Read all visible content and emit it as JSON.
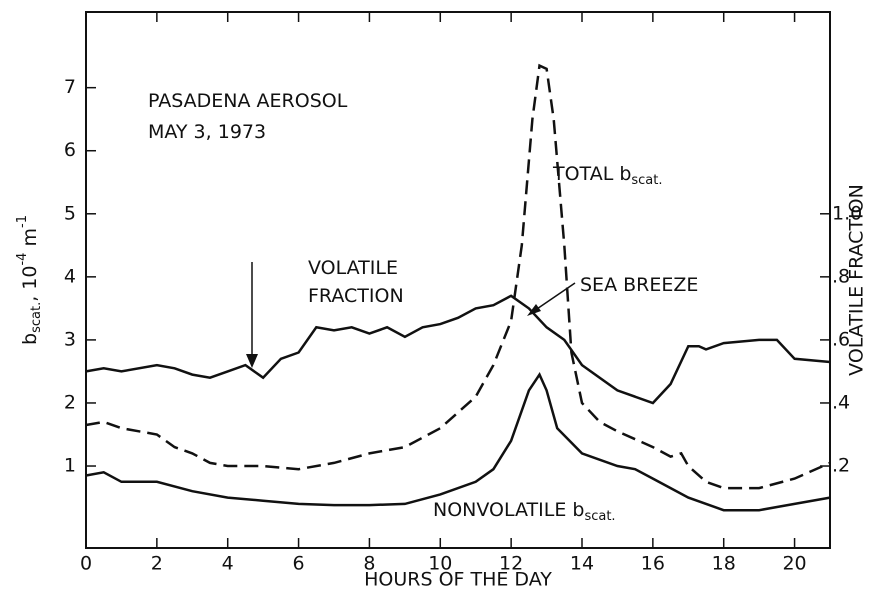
{
  "chart_data": {
    "type": "line",
    "x_label": "HOURS OF THE DAY",
    "y_label": {
      "b": "b",
      "sub": "scat.",
      "mid": ", 10",
      "sup": "-4",
      "unit": " m",
      "sup2": "-1"
    },
    "y2_label": "VOLATILE FRACTION",
    "xlim": [
      0,
      21
    ],
    "xticks": [
      0,
      2,
      4,
      6,
      8,
      10,
      12,
      14,
      16,
      18,
      20
    ],
    "ylim": [
      -0.3,
      8.2
    ],
    "yticks": [
      1,
      2,
      3,
      4,
      5,
      6,
      7
    ],
    "y2lim": [
      -0.06,
      1.64
    ],
    "y2ticks": [
      {
        "value": 0.2,
        "label": ".2"
      },
      {
        "value": 0.4,
        "label": ".4"
      },
      {
        "value": 0.6,
        "label": ".6"
      },
      {
        "value": 0.8,
        "label": ".8"
      },
      {
        "value": 1.0,
        "label": "1.0"
      }
    ],
    "series": [
      {
        "color": "#111",
        "dashed": true,
        "x": [
          0,
          0.5,
          1,
          2,
          2.5,
          3,
          3.5,
          4,
          5,
          6,
          7,
          8,
          9,
          10,
          11,
          11.5,
          12,
          12.3,
          12.6,
          12.8,
          13,
          13.2,
          13.5,
          13.7,
          14,
          14.5,
          15,
          16,
          16.5,
          16.8,
          17,
          17.5,
          18,
          19,
          20,
          21
        ],
        "values": [
          1.65,
          1.7,
          1.6,
          1.5,
          1.3,
          1.2,
          1.05,
          1.0,
          1.0,
          0.95,
          1.05,
          1.2,
          1.3,
          1.6,
          2.1,
          2.6,
          3.3,
          4.5,
          6.5,
          7.35,
          7.3,
          6.5,
          4.5,
          2.8,
          2.0,
          1.7,
          1.55,
          1.3,
          1.15,
          1.2,
          1.0,
          0.75,
          0.65,
          0.65,
          0.8,
          1.05
        ]
      },
      {
        "color": "#111",
        "dashed": false,
        "axis": "y2",
        "x": [
          0,
          0.5,
          1,
          2,
          2.5,
          3,
          3.5,
          4,
          4.5,
          5,
          5.5,
          6,
          6.5,
          7,
          7.5,
          8,
          8.5,
          9,
          9.5,
          10,
          10.5,
          11,
          11.5,
          12,
          12.5,
          13,
          13.5,
          14,
          15,
          16,
          16.5,
          17,
          17.3,
          17.5,
          18,
          19,
          19.5,
          20,
          21
        ],
        "values": [
          0.5,
          0.51,
          0.5,
          0.52,
          0.51,
          0.49,
          0.48,
          0.5,
          0.52,
          0.48,
          0.54,
          0.56,
          0.64,
          0.63,
          0.64,
          0.62,
          0.64,
          0.61,
          0.64,
          0.65,
          0.67,
          0.7,
          0.71,
          0.74,
          0.7,
          0.64,
          0.6,
          0.52,
          0.44,
          0.4,
          0.46,
          0.58,
          0.58,
          0.57,
          0.59,
          0.6,
          0.6,
          0.54,
          0.53
        ]
      },
      {
        "color": "#111",
        "dashed": false,
        "x": [
          0,
          0.5,
          1,
          2,
          3,
          4,
          5,
          6,
          7,
          8,
          9,
          10,
          11,
          11.5,
          12,
          12.5,
          12.8,
          13,
          13.3,
          14,
          15,
          15.5,
          16,
          17,
          18,
          19,
          20,
          21
        ],
        "values": [
          0.85,
          0.9,
          0.75,
          0.75,
          0.6,
          0.5,
          0.45,
          0.4,
          0.38,
          0.38,
          0.4,
          0.55,
          0.75,
          0.95,
          1.4,
          2.2,
          2.45,
          2.2,
          1.6,
          1.2,
          1.0,
          0.95,
          0.8,
          0.5,
          0.3,
          0.3,
          0.4,
          0.5
        ]
      }
    ],
    "annotations": [
      {
        "text": "PASADENA AEROSOL"
      },
      {
        "text": "MAY 3, 1973"
      },
      {
        "text": "TOTAL b",
        "sub": "scat."
      },
      {
        "text": "VOLATILE"
      },
      {
        "text": "FRACTION"
      },
      {
        "text": "SEA BREEZE"
      },
      {
        "text": "NONVOLATILE b",
        "sub": "scat."
      }
    ]
  }
}
